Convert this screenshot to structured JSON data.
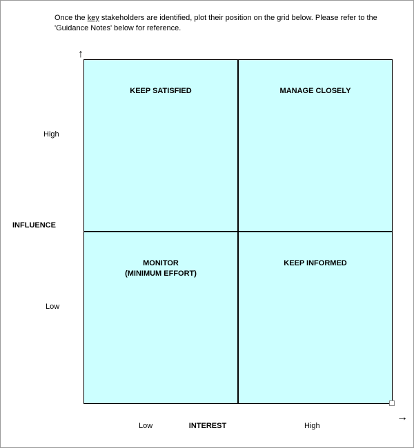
{
  "instruction": {
    "pre": "Once the ",
    "key": "key",
    "post": " stakeholders are identified, plot their position on the grid below.  Please refer to the 'Guidance Notes' below for reference."
  },
  "matrix": {
    "type": "quadrant",
    "cell_bg": "#ccffff",
    "border_color": "#000000",
    "quadrants": {
      "top_left": "KEEP SATISFIED",
      "top_right": "MANAGE CLOSELY",
      "bottom_left_line1": "MONITOR",
      "bottom_left_line2": "(MINIMUM EFFORT)",
      "bottom_right": "KEEP INFORMED"
    },
    "y_axis": {
      "title": "INFLUENCE",
      "high": "High",
      "low": "Low"
    },
    "x_axis": {
      "title": "INTEREST",
      "low": "Low",
      "high": "High"
    }
  },
  "arrows": {
    "up": "↑",
    "right": "→"
  },
  "font": {
    "body_size_pt": 11,
    "label_size_pt": 11,
    "family": "Arial"
  }
}
